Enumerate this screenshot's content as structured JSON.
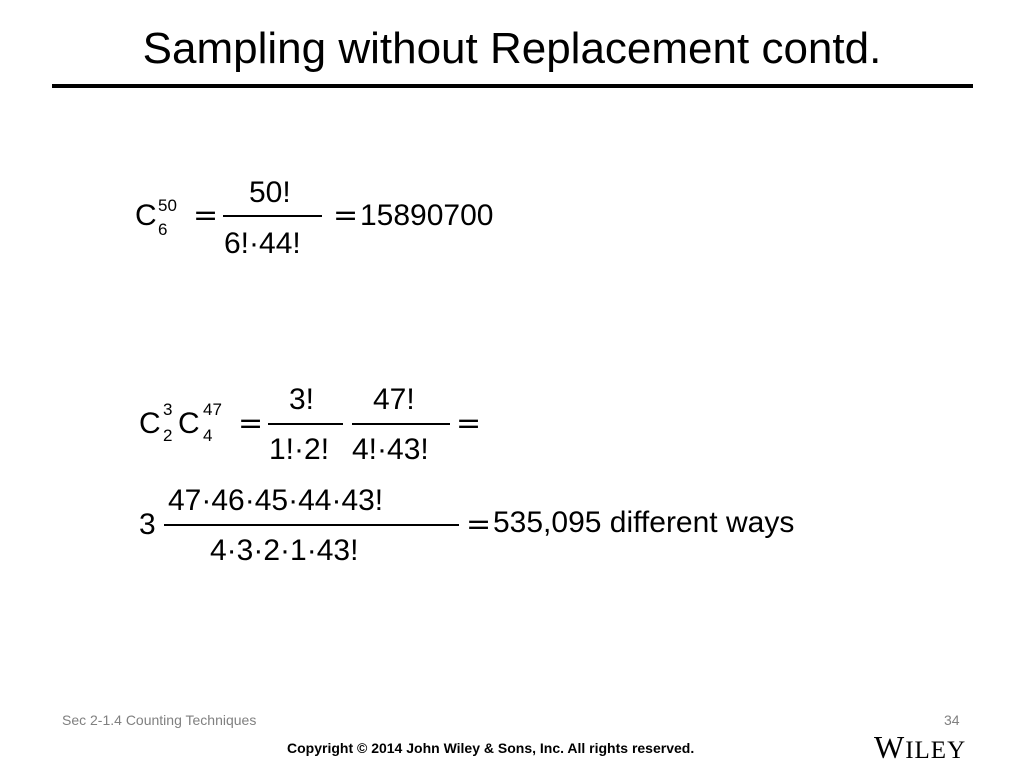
{
  "title": "Sampling without Replacement contd.",
  "eq1": {
    "C": "C",
    "sup": "50",
    "sub": "6",
    "eq_sign": "=",
    "numerator": "50!",
    "denominator": "6!·44!",
    "eq_sign2": "=",
    "result": "15890700"
  },
  "eq2": {
    "C1": "C",
    "sup1": "3",
    "sub1": "2",
    "C2": "C",
    "sup2": "47",
    "sub2": "4",
    "eq_sign": "=",
    "frac1_num": "3!",
    "frac1_den": "1!·2!",
    "frac2_num": "47!",
    "frac2_den": "4!·43!",
    "eq_sign2": "="
  },
  "eq3": {
    "coef": "3",
    "numerator": "47·46·45·44·43!",
    "denominator": "4·3·2·1·43!",
    "eq_sign": "=",
    "result": "535,095 different ways"
  },
  "footer": {
    "section": "Sec 2-1.4 Counting Techniques",
    "page": "34",
    "copyright": "Copyright © 2014 John Wiley & Sons, Inc. All rights reserved.",
    "logo_first": "W",
    "logo_rest": "ILEY"
  }
}
